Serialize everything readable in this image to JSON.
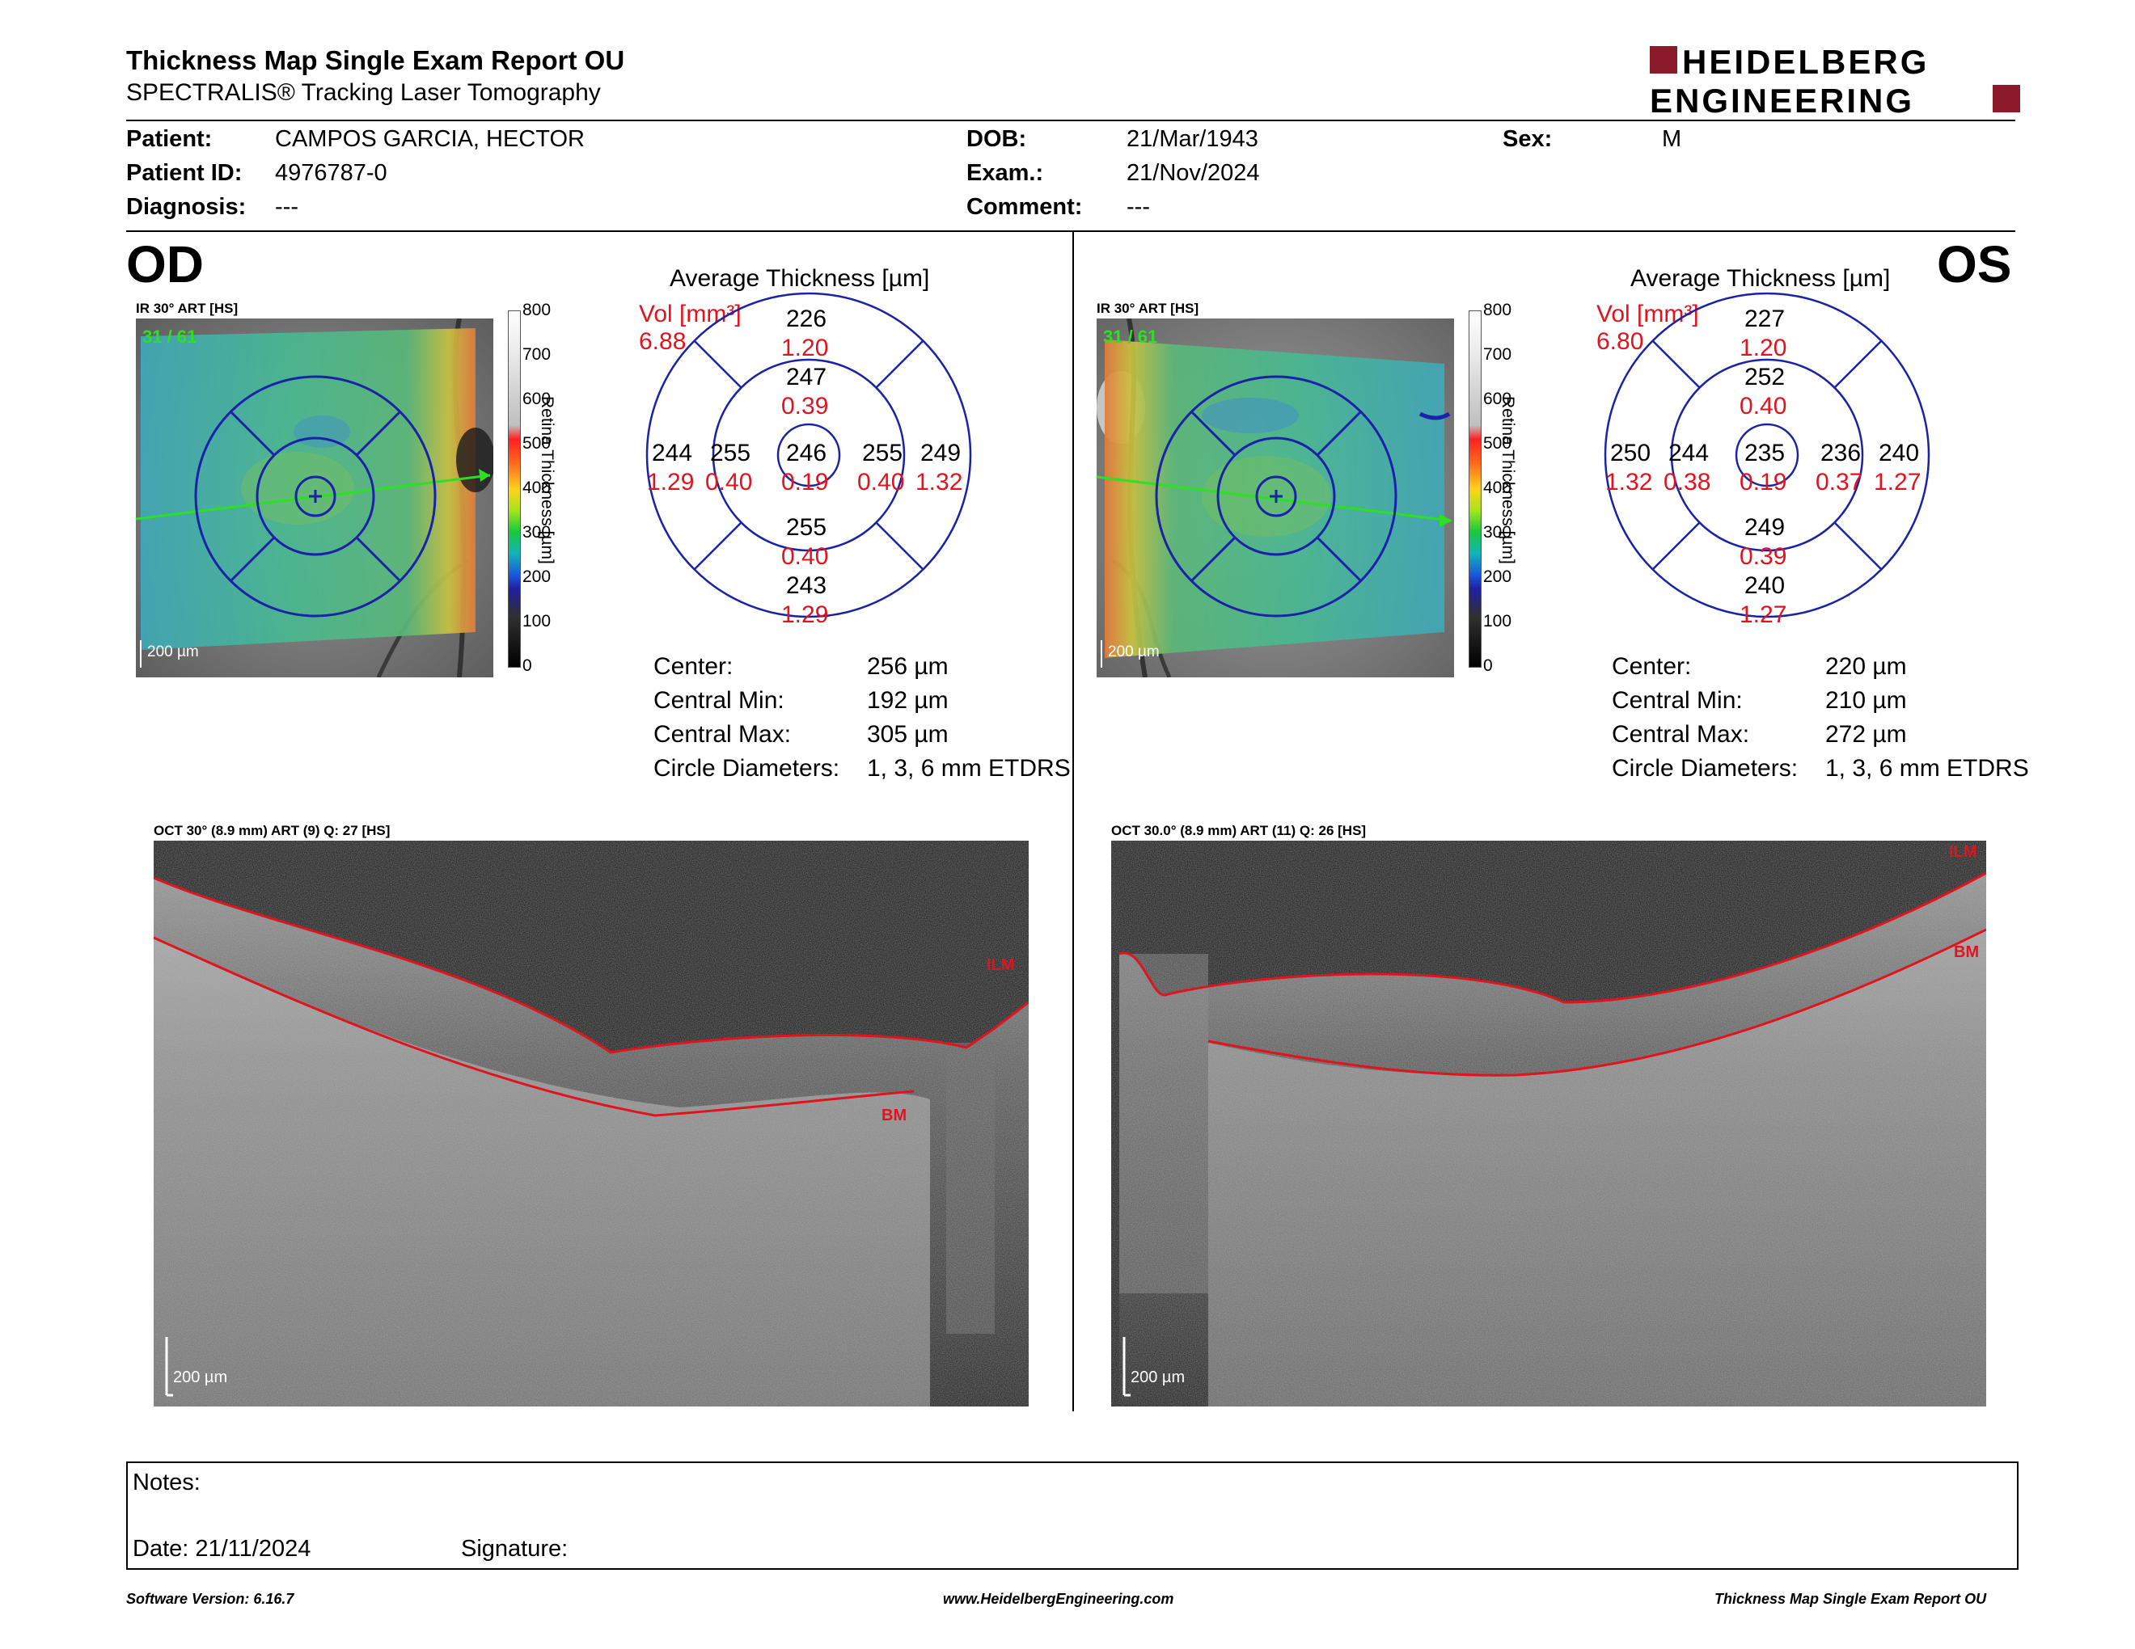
{
  "header": {
    "title": "Thickness Map Single Exam Report OU",
    "subtitle": "SPECTRALIS® Tracking Laser Tomography",
    "logo_line1": "HEIDELBERG",
    "logo_line2": "ENGINEERING"
  },
  "patient": {
    "patient_label": "Patient:",
    "patient_value": "CAMPOS GARCIA, HECTOR",
    "id_label": "Patient ID:",
    "id_value": "4976787-0",
    "diag_label": "Diagnosis:",
    "diag_value": "---",
    "dob_label": "DOB:",
    "dob_value": "21/Mar/1943",
    "exam_label": "Exam.:",
    "exam_value": "21/Nov/2024",
    "comment_label": "Comment:",
    "comment_value": "---",
    "sex_label": "Sex:",
    "sex_value": "M"
  },
  "od": {
    "eye": "OD",
    "ir_caption": "IR 30° ART [HS]",
    "frames": "31 / 61",
    "scalebar": "200 µm",
    "avg_title": "Average Thickness [µm]",
    "vol_label": "Vol [mm³]",
    "vol_value": "6.88",
    "grid": {
      "outer_top": "226",
      "outer_top_v": "1.20",
      "inner_top": "247",
      "inner_top_v": "0.39",
      "outer_left": "244",
      "outer_left_v": "1.29",
      "inner_left": "255",
      "inner_left_v": "0.40",
      "center": "246",
      "center_v": "0.19",
      "inner_right": "255",
      "inner_right_v": "0.40",
      "outer_right": "249",
      "outer_right_v": "1.32",
      "inner_bottom": "255",
      "inner_bottom_v": "0.40",
      "outer_bottom": "243",
      "outer_bottom_v": "1.29"
    },
    "stats": {
      "center_l": "Center:",
      "center_v": "256 µm",
      "min_l": "Central Min:",
      "min_v": "192 µm",
      "max_l": "Central Max:",
      "max_v": "305 µm",
      "circ_l": "Circle Diameters:",
      "circ_v": "1, 3, 6 mm ETDRS"
    },
    "oct_caption": "OCT 30° (8.9 mm) ART (9) Q: 27 [HS]",
    "oct_scalebar": "200 µm",
    "ilm": "ILM",
    "bm": "BM"
  },
  "os": {
    "eye": "OS",
    "ir_caption": "IR 30° ART [HS]",
    "frames": "31 / 61",
    "scalebar": "200 µm",
    "avg_title": "Average Thickness [µm]",
    "vol_label": "Vol [mm³]",
    "vol_value": "6.80",
    "grid": {
      "outer_top": "227",
      "outer_top_v": "1.20",
      "inner_top": "252",
      "inner_top_v": "0.40",
      "outer_left": "250",
      "outer_left_v": "1.32",
      "inner_left": "244",
      "inner_left_v": "0.38",
      "center": "235",
      "center_v": "0.19",
      "inner_right": "236",
      "inner_right_v": "0.37",
      "outer_right": "240",
      "outer_right_v": "1.27",
      "inner_bottom": "249",
      "inner_bottom_v": "0.39",
      "outer_bottom": "240",
      "outer_bottom_v": "1.27"
    },
    "stats": {
      "center_l": "Center:",
      "center_v": "220 µm",
      "min_l": "Central Min:",
      "min_v": "210 µm",
      "max_l": "Central Max:",
      "max_v": "272 µm",
      "circ_l": "Circle Diameters:",
      "circ_v": "1, 3, 6 mm ETDRS"
    },
    "oct_caption": "OCT 30.0° (8.9 mm) ART (11) Q: 26 [HS]",
    "oct_scalebar": "200 µm",
    "ilm": "ILM",
    "bm": "BM"
  },
  "color_scale": {
    "ticks": [
      "800",
      "700",
      "600",
      "500",
      "400",
      "300",
      "200",
      "100",
      "0"
    ],
    "label": "Retina Thickness [µm]"
  },
  "notes": {
    "notes_label": "Notes:",
    "date_label": "Date: 21/11/2024",
    "signature_label": "Signature:"
  },
  "footer": {
    "left": "Software Version: 6.16.7",
    "center": "www.HeidelbergEngineering.com",
    "right": "Thickness Map Single Exam Report OU"
  },
  "colors": {
    "grid_blue": "#1a22a8",
    "volume_red": "#e0141e",
    "logo_red": "#8b1a2b"
  }
}
